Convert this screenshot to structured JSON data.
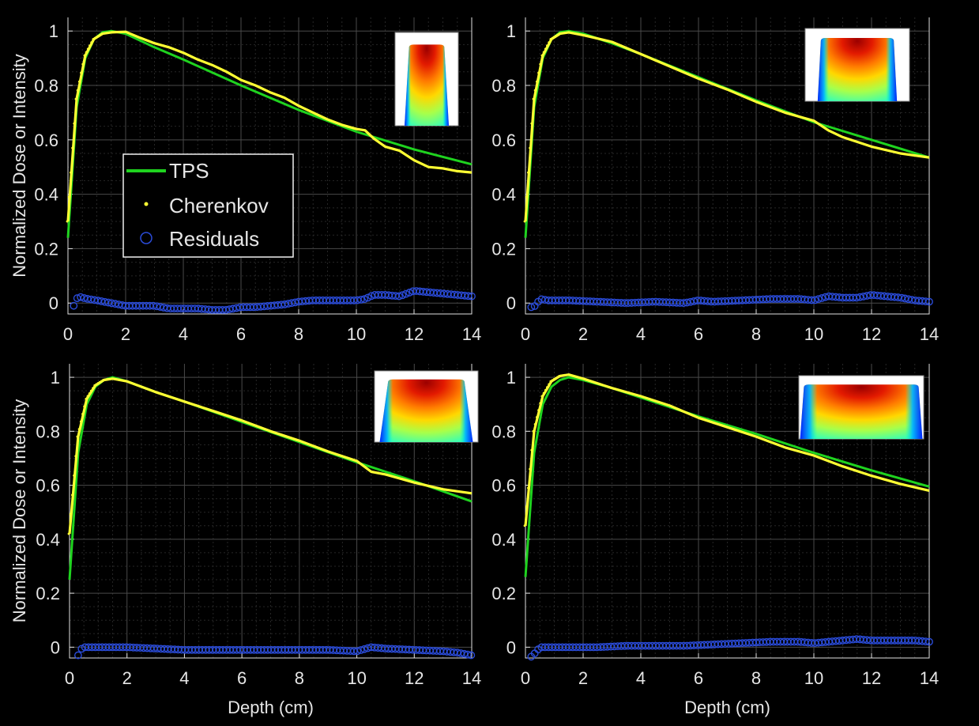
{
  "figure": {
    "legend": {
      "entries": [
        "TPS",
        "Cherenkov",
        "Residuals"
      ]
    }
  },
  "colors": {
    "background": "#000000",
    "tps": "#1fd31f",
    "cherenkov": "#ffff33",
    "residuals": "#2a4bd8",
    "axis": "#e0e0e0",
    "grid": "#3a3a3a"
  },
  "chart_data": [
    {
      "type": "line",
      "panel": "top-left",
      "xlabel": "",
      "ylabel": "Normalized Dose or Intensity",
      "xlim": [
        0,
        14
      ],
      "ylim": [
        -0.04,
        1.05
      ],
      "xticks": [
        0,
        2,
        4,
        6,
        8,
        10,
        12,
        14
      ],
      "yticks": [
        0,
        0.2,
        0.4,
        0.6,
        0.8,
        1
      ],
      "grid": true,
      "legend": {
        "placement": "left",
        "entries": [
          "TPS",
          "Cherenkov",
          "Residuals"
        ]
      },
      "inset": "field-image",
      "series": [
        {
          "name": "TPS",
          "style": "line",
          "x": [
            0,
            0.3,
            0.6,
            0.9,
            1.2,
            1.5,
            2,
            3,
            4,
            6,
            8,
            10,
            12,
            14
          ],
          "y": [
            0.24,
            0.72,
            0.9,
            0.97,
            0.995,
            1.0,
            0.99,
            0.94,
            0.895,
            0.8,
            0.71,
            0.63,
            0.565,
            0.51
          ]
        },
        {
          "name": "Cherenkov",
          "style": "line",
          "x": [
            0,
            0.3,
            0.6,
            0.9,
            1.2,
            1.5,
            2,
            2.5,
            3,
            3.5,
            4,
            4.5,
            5,
            5.5,
            6,
            6.5,
            7,
            7.5,
            8,
            8.5,
            9,
            9.5,
            10,
            10.3,
            10.6,
            11,
            11.5,
            12,
            12.5,
            13,
            13.5,
            14
          ],
          "y": [
            0.3,
            0.75,
            0.91,
            0.97,
            0.99,
            0.995,
            0.997,
            0.975,
            0.955,
            0.94,
            0.92,
            0.895,
            0.875,
            0.85,
            0.82,
            0.8,
            0.775,
            0.755,
            0.725,
            0.7,
            0.675,
            0.655,
            0.64,
            0.635,
            0.605,
            0.575,
            0.56,
            0.525,
            0.5,
            0.495,
            0.485,
            0.48
          ]
        },
        {
          "name": "Residuals",
          "style": "circles",
          "x": [
            0.2,
            0.35,
            0.5,
            0.7,
            1,
            1.5,
            2,
            2.5,
            3,
            3.5,
            4,
            4.5,
            5,
            5.5,
            6,
            6.5,
            7,
            7.5,
            8,
            8.5,
            9,
            9.5,
            10,
            10.3,
            10.6,
            11,
            11.5,
            12,
            12.5,
            13,
            13.5,
            14
          ],
          "y": [
            -0.01,
            0.025,
            0.02,
            0.015,
            0.01,
            0.0,
            -0.01,
            -0.01,
            -0.01,
            -0.02,
            -0.02,
            -0.02,
            -0.025,
            -0.025,
            -0.015,
            -0.015,
            -0.01,
            -0.005,
            0.005,
            0.01,
            0.01,
            0.01,
            0.01,
            0.015,
            0.03,
            0.03,
            0.025,
            0.045,
            0.04,
            0.035,
            0.03,
            0.025
          ]
        }
      ]
    },
    {
      "type": "line",
      "panel": "top-right",
      "xlabel": "",
      "ylabel": "",
      "xlim": [
        0,
        14
      ],
      "ylim": [
        -0.04,
        1.05
      ],
      "xticks": [
        0,
        2,
        4,
        6,
        8,
        10,
        12,
        14
      ],
      "yticks": [
        0,
        0.2,
        0.4,
        0.6,
        0.8,
        1
      ],
      "grid": true,
      "inset": "field-image",
      "series": [
        {
          "name": "TPS",
          "style": "line",
          "x": [
            0,
            0.3,
            0.6,
            0.9,
            1.2,
            1.5,
            2,
            3,
            4,
            6,
            8,
            10,
            12,
            14
          ],
          "y": [
            0.24,
            0.72,
            0.9,
            0.97,
            0.995,
            1.0,
            0.99,
            0.955,
            0.915,
            0.83,
            0.745,
            0.665,
            0.6,
            0.535
          ]
        },
        {
          "name": "Cherenkov",
          "style": "line",
          "x": [
            0,
            0.3,
            0.6,
            0.9,
            1.2,
            1.5,
            2,
            3,
            4,
            5,
            6,
            7,
            8,
            9,
            10,
            10.5,
            11,
            12,
            13,
            14
          ],
          "y": [
            0.3,
            0.75,
            0.91,
            0.97,
            0.99,
            0.995,
            0.985,
            0.96,
            0.915,
            0.87,
            0.825,
            0.785,
            0.74,
            0.7,
            0.67,
            0.635,
            0.61,
            0.575,
            0.55,
            0.535
          ]
        },
        {
          "name": "Residuals",
          "style": "circles",
          "x": [
            0.2,
            0.35,
            0.5,
            0.8,
            1.5,
            2.5,
            3.5,
            4.5,
            5.5,
            6,
            6.5,
            7.5,
            8.5,
            9.5,
            10,
            10.5,
            11,
            11.5,
            12,
            12.5,
            13,
            13.5,
            14
          ],
          "y": [
            -0.015,
            -0.01,
            0.015,
            0.01,
            0.01,
            0.005,
            0.0,
            0.005,
            0.0,
            0.01,
            0.005,
            0.01,
            0.015,
            0.015,
            0.01,
            0.025,
            0.02,
            0.02,
            0.03,
            0.025,
            0.02,
            0.01,
            0.005
          ]
        }
      ]
    },
    {
      "type": "line",
      "panel": "bottom-left",
      "xlabel": "Depth (cm)",
      "ylabel": "Normalized Dose or Intensity",
      "xlim": [
        0,
        14
      ],
      "ylim": [
        -0.04,
        1.05
      ],
      "xticks": [
        0,
        2,
        4,
        6,
        8,
        10,
        12,
        14
      ],
      "yticks": [
        0,
        0.2,
        0.4,
        0.6,
        0.8,
        1
      ],
      "grid": true,
      "inset": "field-image",
      "series": [
        {
          "name": "TPS",
          "style": "line",
          "x": [
            0,
            0.3,
            0.6,
            0.9,
            1.2,
            1.5,
            2,
            3,
            4,
            6,
            8,
            10,
            12,
            14
          ],
          "y": [
            0.25,
            0.72,
            0.9,
            0.965,
            0.99,
            1.0,
            0.985,
            0.945,
            0.91,
            0.835,
            0.76,
            0.685,
            0.615,
            0.54
          ]
        },
        {
          "name": "Cherenkov",
          "style": "line",
          "x": [
            0,
            0.3,
            0.6,
            0.9,
            1.2,
            1.5,
            2,
            3,
            4,
            5,
            6,
            7,
            8,
            9,
            10,
            10.5,
            11,
            12,
            13,
            14
          ],
          "y": [
            0.42,
            0.78,
            0.92,
            0.97,
            0.99,
            0.995,
            0.985,
            0.945,
            0.91,
            0.875,
            0.84,
            0.8,
            0.765,
            0.725,
            0.69,
            0.65,
            0.64,
            0.61,
            0.585,
            0.57
          ]
        },
        {
          "name": "Residuals",
          "style": "circles",
          "x": [
            0.3,
            0.45,
            0.6,
            1,
            2,
            3,
            4,
            5,
            6,
            7,
            8,
            9,
            10,
            10.5,
            11,
            12,
            13,
            13.5,
            14
          ],
          "y": [
            -0.03,
            0.0,
            0.0,
            0.0,
            0.0,
            -0.005,
            -0.01,
            -0.01,
            -0.01,
            -0.01,
            -0.01,
            -0.01,
            -0.015,
            0.0,
            -0.005,
            -0.01,
            -0.015,
            -0.02,
            -0.03
          ]
        }
      ]
    },
    {
      "type": "line",
      "panel": "bottom-right",
      "xlabel": "Depth (cm)",
      "ylabel": "",
      "xlim": [
        0,
        14
      ],
      "ylim": [
        -0.04,
        1.05
      ],
      "xticks": [
        0,
        2,
        4,
        6,
        8,
        10,
        12,
        14
      ],
      "yticks": [
        0,
        0.2,
        0.4,
        0.6,
        0.8,
        1
      ],
      "grid": true,
      "inset": "field-image",
      "series": [
        {
          "name": "TPS",
          "style": "line",
          "x": [
            0,
            0.3,
            0.6,
            0.9,
            1.2,
            1.5,
            2,
            3,
            4,
            6,
            8,
            10,
            12,
            14
          ],
          "y": [
            0.26,
            0.72,
            0.9,
            0.965,
            0.99,
            1.0,
            0.99,
            0.96,
            0.925,
            0.855,
            0.79,
            0.72,
            0.655,
            0.595
          ]
        },
        {
          "name": "Cherenkov",
          "style": "line",
          "x": [
            0,
            0.3,
            0.6,
            0.9,
            1.2,
            1.5,
            2,
            3,
            4,
            5,
            6,
            7,
            8,
            9,
            10,
            11,
            12,
            13,
            14
          ],
          "y": [
            0.45,
            0.8,
            0.93,
            0.985,
            1.005,
            1.01,
            0.995,
            0.96,
            0.93,
            0.895,
            0.85,
            0.815,
            0.78,
            0.74,
            0.71,
            0.67,
            0.635,
            0.605,
            0.58
          ]
        },
        {
          "name": "Residuals",
          "style": "circles",
          "x": [
            0.2,
            0.35,
            0.5,
            0.8,
            1.5,
            2.5,
            3.5,
            4.5,
            5.5,
            6.5,
            7.5,
            8.5,
            9.5,
            10,
            10.5,
            11,
            11.5,
            12,
            12.5,
            13,
            13.5,
            14
          ],
          "y": [
            -0.035,
            -0.02,
            0.0,
            0.0,
            0.0,
            0.0,
            0.005,
            0.005,
            0.005,
            0.01,
            0.015,
            0.02,
            0.02,
            0.015,
            0.02,
            0.025,
            0.03,
            0.025,
            0.025,
            0.025,
            0.025,
            0.02
          ]
        }
      ]
    }
  ]
}
